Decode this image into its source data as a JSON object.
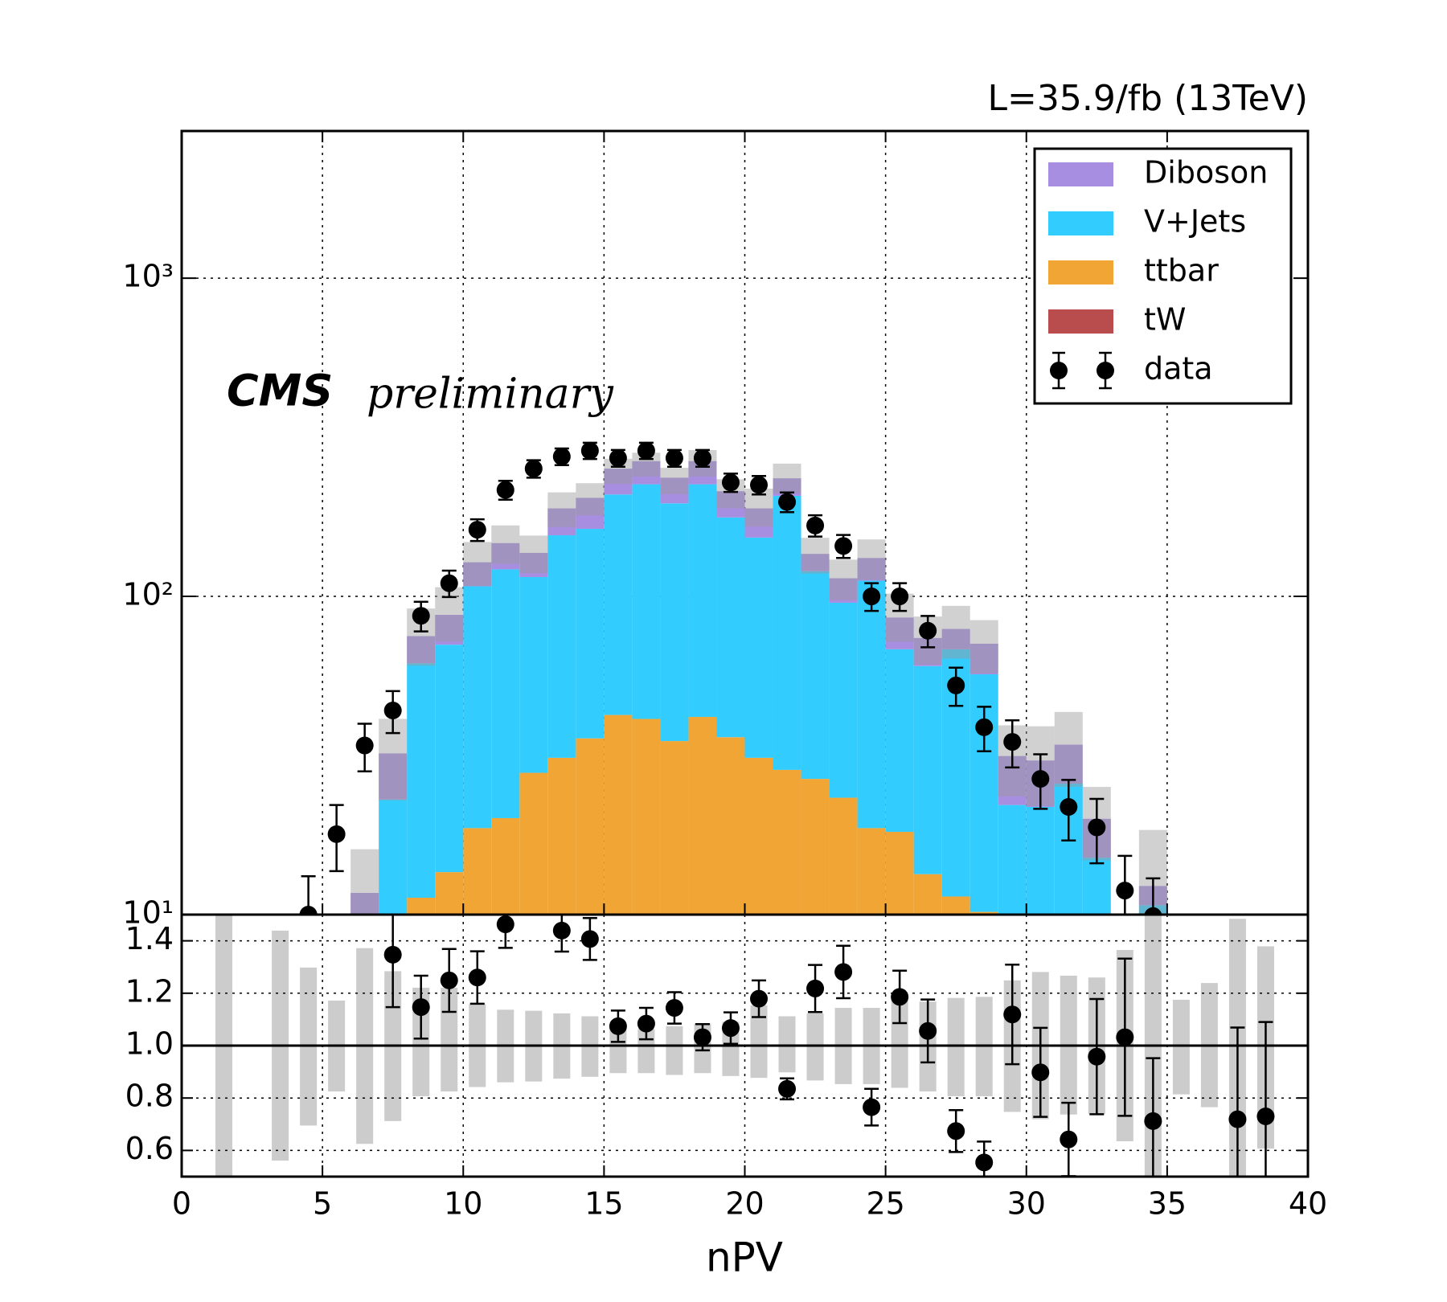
{
  "chart_data": [
    {
      "type": "stacked_histogram",
      "title": "L=35.9/fb (13TeV)",
      "annotation": "CMS",
      "annotation_italic": "preliminary",
      "bins": [
        0,
        1,
        2,
        3,
        4,
        5,
        6,
        7,
        8,
        9,
        10,
        11,
        12,
        13,
        14,
        15,
        16,
        17,
        18,
        19,
        20,
        21,
        22,
        23,
        24,
        25,
        26,
        27,
        28,
        29,
        30,
        31,
        32,
        33,
        34,
        35,
        36,
        37,
        38,
        39,
        40
      ],
      "series": [
        {
          "name": "Diboson",
          "color": "#a78ee0",
          "values": [
            null,
            null,
            null,
            null,
            null,
            null,
            11.7,
            9.1,
            13.4,
            17,
            20.4,
            25.4,
            22,
            33.4,
            41,
            43,
            41,
            40,
            41,
            37,
            36,
            28,
            16,
            18.5,
            20,
            17.6,
            13.6,
            10.8,
            14.1,
            9.4,
            8.7,
            8.4,
            4.9,
            null,
            1.6,
            null,
            null,
            null,
            null,
            null
          ]
        },
        {
          "name": "V+Jets",
          "color": "#33ccff",
          "values": [
            null,
            null,
            null,
            null,
            null,
            null,
            null,
            23,
            50.3,
            56.9,
            88.9,
            101.5,
            87.1,
            124.5,
            127.2,
            166.6,
            183.8,
            160.9,
            183.2,
            140.9,
            121.9,
            178.5,
            93.3,
            72.2,
            93.3,
            50,
            47,
            56.8,
            46.7,
            22.1,
            21.8,
            25.8,
            15.1,
            null,
            10.7,
            null,
            null,
            null,
            null,
            null
          ]
        },
        {
          "name": "ttbar",
          "color": "#f0a535",
          "values": [
            null,
            null,
            null,
            null,
            null,
            null,
            null,
            null,
            11.3,
            13.6,
            18.7,
            20.1,
            27.9,
            31.1,
            35.8,
            42.4,
            41.2,
            35.1,
            41.8,
            36.1,
            31.1,
            28.5,
            26.7,
            23.3,
            18.7,
            18.2,
            13.4,
            11.4,
            10.2,
            null,
            null,
            null,
            null,
            null,
            null,
            null,
            null,
            null,
            null,
            null
          ]
        },
        {
          "name": "tW",
          "color": "#b94c4c",
          "values": [
            null,
            null,
            null,
            null,
            null,
            null,
            null,
            null,
            null,
            null,
            null,
            null,
            null,
            null,
            null,
            null,
            null,
            null,
            null,
            null,
            null,
            null,
            null,
            null,
            null,
            null,
            null,
            null,
            null,
            null,
            null,
            null,
            null,
            null,
            null,
            null,
            null,
            null,
            null,
            null
          ]
        }
      ],
      "data": {
        "name": "data",
        "color": "#000000",
        "x": [
          4.5,
          5.5,
          6.5,
          7.5,
          8.5,
          9.5,
          10.5,
          11.5,
          12.5,
          13.5,
          14.5,
          15.5,
          16.5,
          17.5,
          18.5,
          19.5,
          20.5,
          21.5,
          22.5,
          23.5,
          24.5,
          25.5,
          26.5,
          27.5,
          28.5,
          29.5,
          30.5,
          31.5,
          32.5,
          33.5,
          34.5
        ],
        "values": [
          10,
          17.9,
          34,
          43.8,
          86.9,
          110,
          162,
          216,
          252,
          275,
          287,
          272,
          287,
          272,
          272,
          228,
          224,
          198,
          167,
          144,
          100,
          100,
          78,
          52.5,
          38.8,
          34.9,
          26.7,
          21.8,
          18.8,
          11.9,
          9.9
        ],
        "errors": [
          3.2,
          4.2,
          5.8,
          6.6,
          9.3,
          10.5,
          12.7,
          14.7,
          15.9,
          16.6,
          16.9,
          16.5,
          16.9,
          16.5,
          16.5,
          15.1,
          15,
          14.1,
          12.9,
          12,
          10,
          10,
          8.8,
          7.2,
          6.2,
          5.9,
          5.2,
          4.7,
          4.3,
          3.4,
          3.1
        ]
      },
      "xlim": [
        0,
        40
      ],
      "xticks": [
        0,
        5,
        10,
        15,
        20,
        25,
        30,
        35,
        40
      ],
      "ylim": [
        10,
        2900
      ],
      "log_scale": true,
      "yticks": [
        {
          "value": 10,
          "label": "10¹"
        },
        {
          "value": 100,
          "label": "10²"
        },
        {
          "value": 1000,
          "label": "10³"
        }
      ],
      "grid": true,
      "legend": "upper right"
    },
    {
      "type": "ratio",
      "xlabel": "nPV",
      "xlim": [
        0,
        40
      ],
      "xticks": [
        0,
        5,
        10,
        15,
        20,
        25,
        30,
        35,
        40
      ],
      "ylim": [
        0.5,
        1.5
      ],
      "yticks": [
        0.6,
        0.8,
        {
          "value": 1,
          "label": "1.0"
        },
        1.2,
        1.4
      ],
      "reference_line": 1,
      "grid": true,
      "band": {
        "color": "#cccccc",
        "x": [
          1.5,
          3.5,
          4.5,
          5.5,
          6.5,
          7.5,
          8.5,
          9.5,
          10.5,
          11.5,
          12.5,
          13.5,
          14.5,
          15.5,
          16.5,
          17.5,
          18.5,
          19.5,
          20.5,
          21.5,
          22.5,
          23.5,
          24.5,
          25.5,
          26.5,
          27.5,
          28.5,
          29.5,
          30.5,
          31.5,
          32.5,
          33.5,
          34.5,
          35.5,
          36.5,
          37.5,
          38.5
        ],
        "low": [
          0.5,
          0.561,
          0.695,
          0.825,
          0.625,
          0.712,
          0.807,
          0.825,
          0.842,
          0.86,
          0.863,
          0.874,
          0.881,
          0.895,
          0.895,
          0.888,
          0.895,
          0.884,
          0.877,
          0.898,
          0.867,
          0.853,
          0.853,
          0.839,
          0.825,
          0.807,
          0.807,
          0.747,
          0.719,
          0.737,
          0.74,
          0.635,
          0.5,
          0.814,
          0.765,
          0.5,
          0.607
        ],
        "high": [
          1.5,
          1.439,
          1.298,
          1.172,
          1.372,
          1.284,
          1.221,
          1.221,
          1.158,
          1.137,
          1.133,
          1.123,
          1.112,
          1.074,
          1.063,
          1.074,
          1.084,
          1.091,
          1.154,
          1.112,
          1.123,
          1.144,
          1.144,
          1.189,
          1.168,
          1.182,
          1.186,
          1.249,
          1.281,
          1.267,
          1.26,
          1.365,
          1.5,
          1.175,
          1.239,
          1.484,
          1.379
        ]
      },
      "points": {
        "color": "#000000",
        "x": [
          7.5,
          8.5,
          9.5,
          10.5,
          11.5,
          13.5,
          14.5,
          15.5,
          16.5,
          17.5,
          18.5,
          19.5,
          20.5,
          21.5,
          22.5,
          23.5,
          24.5,
          25.5,
          26.5,
          27.5,
          28.5,
          29.5,
          30.5,
          31.5,
          32.5,
          33.5,
          34.5,
          37.5,
          38.5
        ],
        "values": [
          1.347,
          1.147,
          1.249,
          1.26,
          1.463,
          1.439,
          1.407,
          1.074,
          1.084,
          1.144,
          1.032,
          1.067,
          1.179,
          0.835,
          1.218,
          1.281,
          0.765,
          1.186,
          1.056,
          0.674,
          0.554,
          1.119,
          0.898,
          0.642,
          0.958,
          1.032,
          0.712,
          0.719,
          0.73
        ],
        "errors": [
          0.2,
          0.12,
          0.12,
          0.1,
          0.09,
          0.08,
          0.08,
          0.06,
          0.06,
          0.06,
          0.05,
          0.06,
          0.07,
          0.04,
          0.09,
          0.1,
          0.07,
          0.1,
          0.12,
          0.08,
          0.08,
          0.19,
          0.17,
          0.14,
          0.22,
          0.3,
          0.24,
          0.35,
          0.36
        ]
      }
    }
  ]
}
